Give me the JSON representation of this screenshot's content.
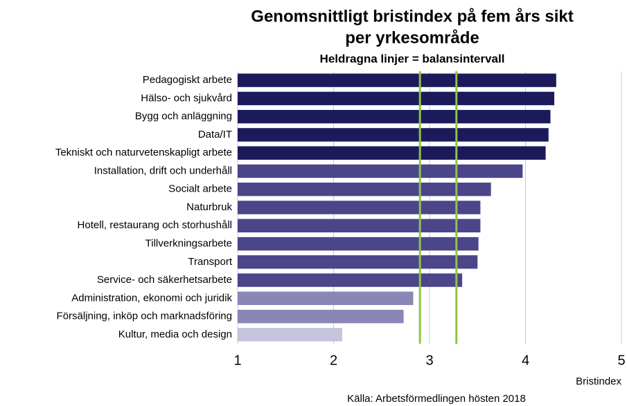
{
  "chart_data": {
    "type": "barh",
    "title": "Genomsnittligt bristindex på fem års sikt",
    "title_line2": "per yrkesområde",
    "subtitle": "Heldragna linjer = balansintervall",
    "xlabel": "Bristindex",
    "source": "Källa: Arbetsförmedlingen  hösten 2018",
    "categories": [
      "Pedagogiskt arbete",
      "Hälso- och sjukvård",
      "Bygg och anläggning",
      "Data/IT",
      "Tekniskt och naturvetenskapligt arbete",
      "Installation, drift och underhåll",
      "Socialt arbete",
      "Naturbruk",
      "Hotell, restaurang och storhushåll",
      "Tillverkningsarbete",
      "Transport",
      "Service- och säkerhetsarbete",
      "Administration, ekonomi och juridik",
      "Försäljning, inköp och marknadsföring",
      "Kultur, media och design"
    ],
    "values": [
      4.32,
      4.3,
      4.26,
      4.24,
      4.21,
      3.97,
      3.64,
      3.53,
      3.53,
      3.51,
      3.5,
      3.34,
      2.83,
      2.73,
      2.09
    ],
    "colors": [
      "#1d1a5c",
      "#1d1a5c",
      "#1d1a5c",
      "#1d1a5c",
      "#1d1a5c",
      "#4b4689",
      "#4b4689",
      "#4b4689",
      "#4b4689",
      "#4b4689",
      "#4b4689",
      "#4b4689",
      "#8a86b6",
      "#8a86b6",
      "#c5c3dd"
    ],
    "balance_interval": [
      2.9,
      3.28
    ],
    "balance_color": "#8dc63f",
    "xlim": [
      1,
      5
    ],
    "xticks": [
      1,
      2,
      3,
      4,
      5
    ],
    "grid": true
  }
}
